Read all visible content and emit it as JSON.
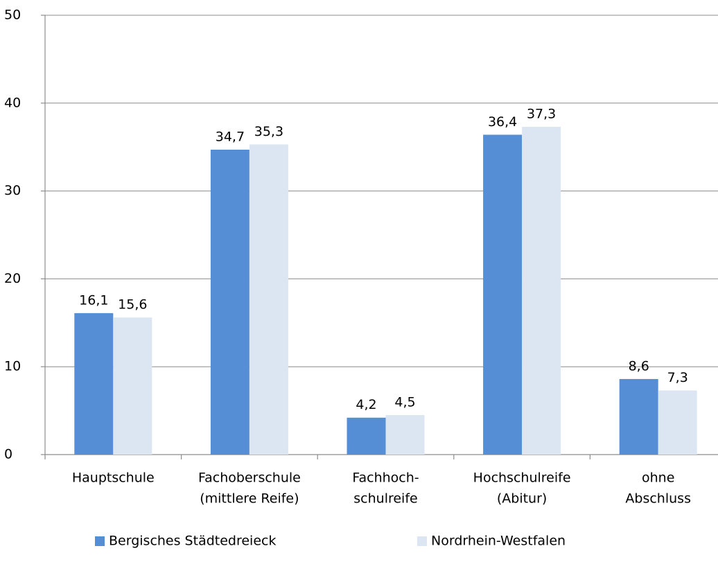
{
  "chart_data": {
    "type": "bar",
    "categories": [
      [
        "Hauptschule"
      ],
      [
        "Fachoberschule",
        "(mittlere Reife)"
      ],
      [
        "Fachhoch-",
        "schulreife"
      ],
      [
        "Hochschulreife",
        "(Abitur)"
      ],
      [
        "ohne",
        "Abschluss"
      ]
    ],
    "series": [
      {
        "name": "Bergisches Städtedreieck",
        "color": "#558ed5",
        "values": [
          16.1,
          34.7,
          4.2,
          36.4,
          8.6
        ],
        "value_labels": [
          "16,1",
          "34,7",
          "4,2",
          "36,4",
          "8,6"
        ]
      },
      {
        "name": "Nordrhein-Westfalen",
        "color": "#dce6f2",
        "values": [
          15.6,
          35.3,
          4.5,
          37.3,
          7.3
        ],
        "value_labels": [
          "15,6",
          "35,3",
          "4,5",
          "37,3",
          "7,3"
        ]
      }
    ],
    "ylim": [
      0,
      50
    ],
    "yticks": [
      0,
      10,
      20,
      30,
      40,
      50
    ],
    "grid": true,
    "legend": "bottom"
  }
}
